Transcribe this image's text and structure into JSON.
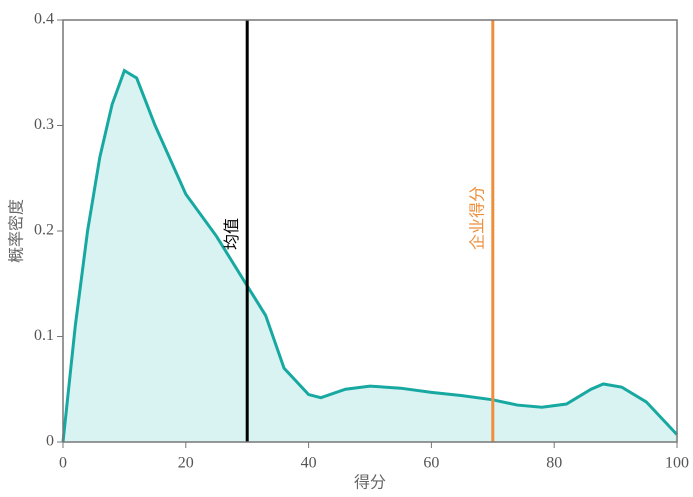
{
  "chart_data": {
    "type": "area",
    "x_label": "得分",
    "y_label": "概率密度",
    "x": [
      0,
      2,
      4,
      6,
      8,
      10,
      12,
      15,
      20,
      25,
      30,
      33,
      36,
      40,
      42,
      46,
      50,
      55,
      60,
      65,
      70,
      74,
      78,
      82,
      86,
      88,
      91,
      95,
      100
    ],
    "values": [
      0,
      0.11,
      0.2,
      0.27,
      0.32,
      0.352,
      0.345,
      0.3,
      0.235,
      0.195,
      0.148,
      0.12,
      0.07,
      0.045,
      0.042,
      0.05,
      0.053,
      0.051,
      0.047,
      0.044,
      0.04,
      0.035,
      0.033,
      0.036,
      0.05,
      0.055,
      0.052,
      0.038,
      0.007
    ],
    "color": "#17a9a1",
    "fill_color": "#d9f2f2",
    "xlim": [
      0,
      100
    ],
    "xticks": [
      0,
      20,
      40,
      60,
      80,
      100
    ],
    "ylim": [
      0,
      0.4
    ],
    "yticks": [
      0,
      0.1,
      0.2,
      0.3,
      0.4
    ],
    "vlines": [
      {
        "x": 30,
        "label": "均值",
        "color": "#000000"
      },
      {
        "x": 70,
        "label": "企业得分",
        "color": "#ee8f3c"
      }
    ]
  }
}
